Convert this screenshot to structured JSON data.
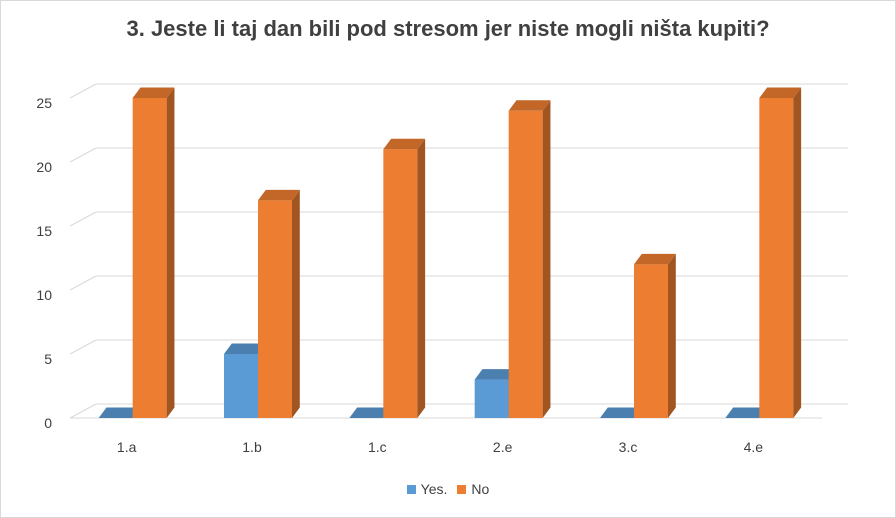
{
  "chart_data": {
    "type": "bar",
    "title": "3. Jeste li taj dan bili pod stresom jer niste mogli ništa kupiti?",
    "categories": [
      "1.a",
      "1.b",
      "1.c",
      "2.e",
      "3.c",
      "4.e"
    ],
    "series": [
      {
        "name": "Yes.",
        "color": "#5b9bd5",
        "values": [
          0,
          5,
          0,
          3,
          0,
          0
        ]
      },
      {
        "name": "No",
        "color": "#ed7d31",
        "values": [
          25,
          17,
          21,
          24,
          12,
          25
        ]
      }
    ],
    "ylim": [
      0,
      25
    ],
    "yticks": [
      0,
      5,
      10,
      15,
      20,
      25
    ],
    "grid": true,
    "legend_position": "bottom",
    "style": "3d-clustered-column"
  }
}
